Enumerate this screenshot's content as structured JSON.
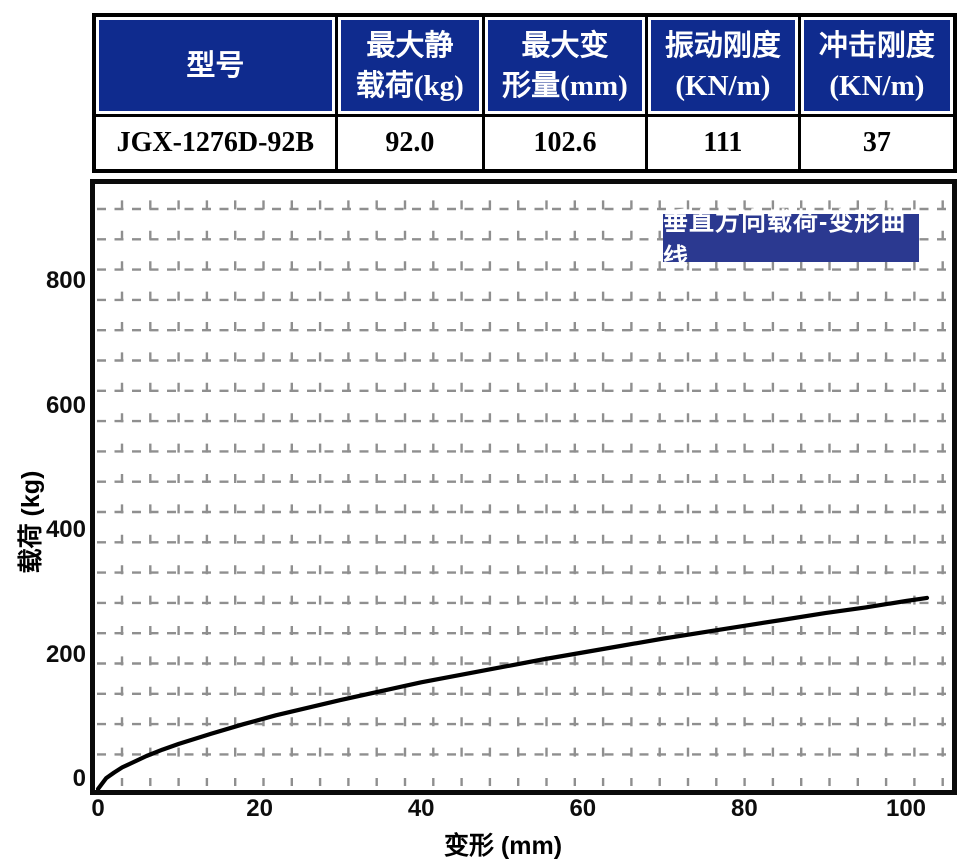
{
  "table": {
    "headers": [
      {
        "l1": "型号",
        "l2": ""
      },
      {
        "l1": "最大静",
        "l2": "载荷(kg)"
      },
      {
        "l1": "最大变",
        "l2": "形量(mm)"
      },
      {
        "l1": "振动刚度",
        "l2": "(KN/m)"
      },
      {
        "l1": "冲击刚度",
        "l2": "(KN/m)"
      }
    ],
    "row": [
      "JGX-1276D-92B",
      "92.0",
      "102.6",
      "111",
      "37"
    ]
  },
  "chart_data": {
    "type": "line",
    "title": "垂直方向载荷-变形曲线",
    "xlabel": "变形 (mm)",
    "ylabel": "载荷 (kg)",
    "x_ticks": [
      0,
      20,
      40,
      60,
      80,
      100
    ],
    "y_ticks": [
      0,
      200,
      400,
      600,
      800
    ],
    "xlim": [
      0,
      106
    ],
    "ylim": [
      0,
      955
    ],
    "grid": "dashed-both-directions",
    "legend": "none",
    "series": [
      {
        "name": "垂直方向载荷-变形",
        "points": [
          [
            0,
            0
          ],
          [
            1,
            17
          ],
          [
            2,
            26
          ],
          [
            3,
            34
          ],
          [
            4,
            40
          ],
          [
            6,
            52
          ],
          [
            8,
            62
          ],
          [
            10,
            71
          ],
          [
            14,
            87
          ],
          [
            18,
            102
          ],
          [
            22,
            116
          ],
          [
            26,
            128
          ],
          [
            30,
            140
          ],
          [
            35,
            154
          ],
          [
            40,
            168
          ],
          [
            45,
            180
          ],
          [
            50,
            192
          ],
          [
            55,
            204
          ],
          [
            60,
            215
          ],
          [
            65,
            226
          ],
          [
            70,
            237
          ],
          [
            75,
            247
          ],
          [
            80,
            257
          ],
          [
            85,
            267
          ],
          [
            90,
            277
          ],
          [
            95,
            286
          ],
          [
            100,
            296
          ],
          [
            102.6,
            301
          ]
        ]
      }
    ]
  },
  "colors": {
    "header_bg": "#0f2b8e",
    "badge_bg": "#2b3990",
    "grid": "#8f8f8f",
    "curve": "#000000",
    "frame": "#0b0b0b"
  }
}
